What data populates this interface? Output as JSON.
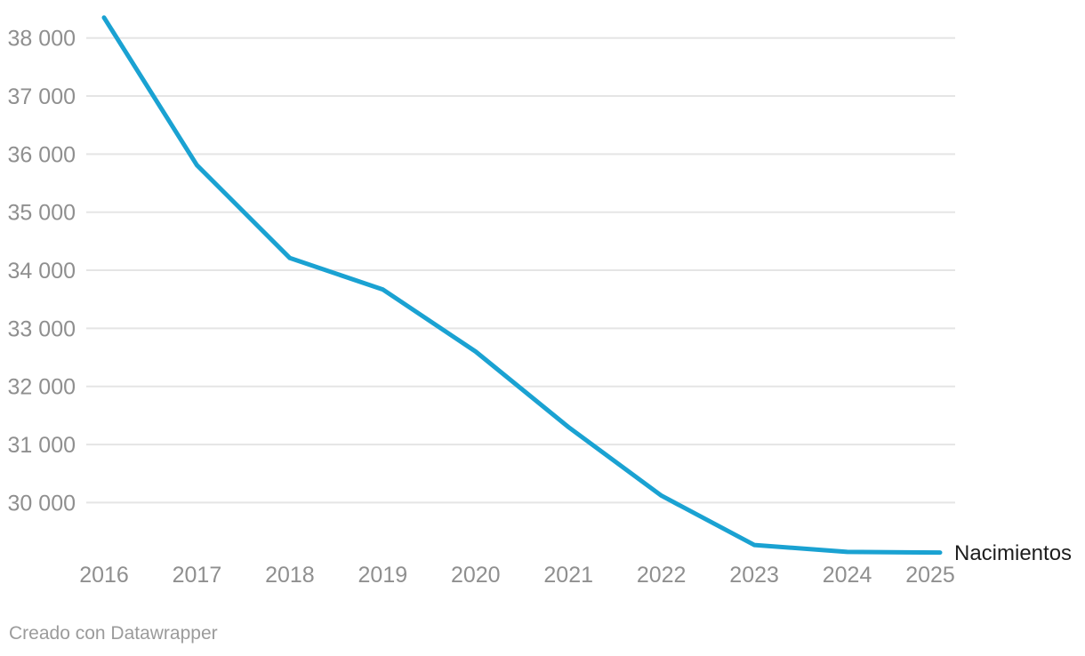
{
  "chart_data": {
    "type": "line",
    "title": "",
    "xlabel": "",
    "ylabel": "",
    "x": [
      2016,
      2017,
      2018,
      2019,
      2020,
      2021,
      2022,
      2023,
      2024,
      2025
    ],
    "xticks": [
      "2016",
      "2017",
      "2018",
      "2019",
      "2020",
      "2021",
      "2022",
      "2023",
      "2024",
      "2025"
    ],
    "series": [
      {
        "name": "Nacimientos",
        "color": "#1aa2d2",
        "values": [
          38350,
          35810,
          34210,
          33670,
          32600,
          31300,
          30120,
          29270,
          29150,
          29140
        ]
      }
    ],
    "ylim": [
      28900,
      38400
    ],
    "yticks": [
      {
        "value": 38000,
        "label": "38 000"
      },
      {
        "value": 37000,
        "label": "37 000"
      },
      {
        "value": 36000,
        "label": "36 000"
      },
      {
        "value": 35000,
        "label": "35 000"
      },
      {
        "value": 34000,
        "label": "34 000"
      },
      {
        "value": 33000,
        "label": "33 000"
      },
      {
        "value": 32000,
        "label": "32 000"
      },
      {
        "value": 31000,
        "label": "31 000"
      },
      {
        "value": 30000,
        "label": "30 000"
      }
    ],
    "grid": "horizontal",
    "legend_position": "direct-label-at-line-end"
  },
  "footer": {
    "credit": "Creado con Datawrapper"
  },
  "colors": {
    "line": "#1aa2d2",
    "grid": "#e5e5e5",
    "tick_text": "#8f8f8f",
    "series_label_text": "#1d1d1d",
    "credit_text": "#9b9b9b",
    "background": "#ffffff"
  }
}
